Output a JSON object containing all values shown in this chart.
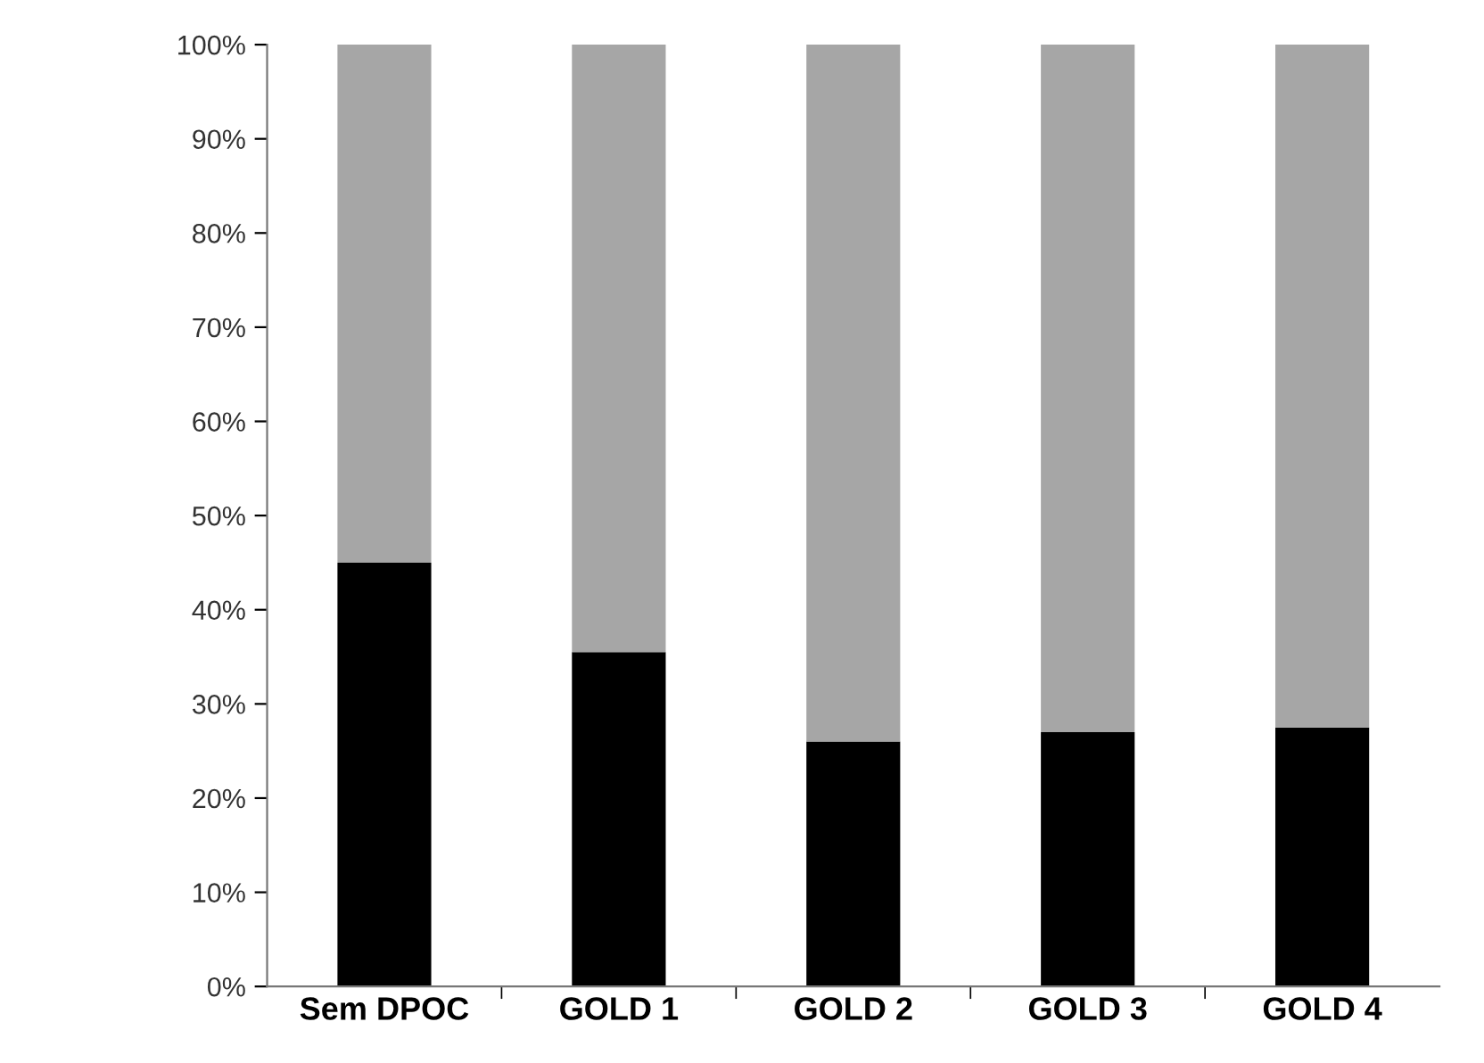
{
  "chart_data": {
    "type": "bar",
    "stacked": true,
    "categories": [
      "Sem DPOC",
      "GOLD 1",
      "GOLD 2",
      "GOLD 3",
      "GOLD 4"
    ],
    "series": [
      {
        "color": "#000000",
        "values": [
          45,
          35.5,
          26,
          27,
          27.5
        ]
      },
      {
        "color": "#a6a6a6",
        "values": [
          55,
          64.5,
          74,
          73,
          72.5
        ]
      }
    ],
    "ylim": [
      0,
      100
    ],
    "yticks": [
      {
        "value": 0,
        "label": "0%"
      },
      {
        "value": 10,
        "label": "10%"
      },
      {
        "value": 20,
        "label": "20%"
      },
      {
        "value": 30,
        "label": "30%"
      },
      {
        "value": 40,
        "label": "40%"
      },
      {
        "value": 50,
        "label": "50%"
      },
      {
        "value": 60,
        "label": "60%"
      },
      {
        "value": 70,
        "label": "70%"
      },
      {
        "value": 80,
        "label": "80%"
      },
      {
        "value": 90,
        "label": "90%"
      },
      {
        "value": 100,
        "label": "100%"
      }
    ],
    "grid": false,
    "legend": false
  }
}
